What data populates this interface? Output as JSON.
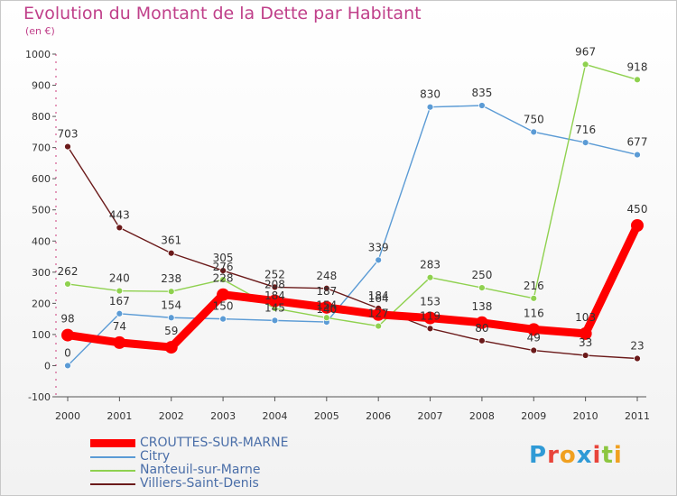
{
  "title": "Evolution du Montant de la Dette par Habitant",
  "unit": "(en €)",
  "logo": {
    "text": "Proxiti",
    "colors": [
      "#2f9ad6",
      "#e8443a",
      "#f0a020",
      "#2f9ad6",
      "#e8443a",
      "#8cc63f",
      "#f0a020"
    ]
  },
  "chart_data": {
    "type": "line",
    "title": "Evolution du Montant de la Dette par Habitant",
    "ylabel": "(en €)",
    "xlabel": "",
    "x": [
      "2000",
      "2001",
      "2002",
      "2003",
      "2004",
      "2005",
      "2006",
      "2007",
      "2008",
      "2009",
      "2010",
      "2011"
    ],
    "ylim": [
      -100,
      1000
    ],
    "yticks": [
      -100,
      0,
      100,
      200,
      300,
      400,
      500,
      600,
      700,
      800,
      900,
      1000
    ],
    "grid": false,
    "legend": "bottom-left",
    "series": [
      {
        "name": "CROUTTES-SUR-MARNE",
        "color": "#ff0000",
        "values": [
          98,
          74,
          59,
          228,
          208,
          187,
          164,
          153,
          138,
          116,
          103,
          450
        ],
        "labels": [
          "98",
          "74",
          "59",
          "228",
          "208",
          "187",
          "164",
          "153",
          "138",
          "116",
          "103",
          "450"
        ]
      },
      {
        "name": "Citry",
        "color": "#5b9bd5",
        "values": [
          0,
          167,
          154,
          150,
          145,
          140,
          339,
          830,
          835,
          750,
          716,
          677
        ],
        "labels": [
          "0",
          "167",
          "154",
          "150",
          "145",
          "140",
          "339",
          "830",
          "835",
          "750",
          "716",
          "677"
        ]
      },
      {
        "name": "Nanteuil-sur-Marne",
        "color": "#8fd14f",
        "values": [
          262,
          240,
          238,
          276,
          184,
          154,
          127,
          283,
          250,
          216,
          967,
          918
        ],
        "labels": [
          "262",
          "240",
          "238",
          "276",
          "184",
          "154",
          "127",
          "283",
          "250",
          "216",
          "967",
          "918"
        ]
      },
      {
        "name": "Villiers-Saint-Denis",
        "color": "#6b1a1a",
        "values": [
          703,
          443,
          361,
          305,
          252,
          248,
          184,
          119,
          80,
          49,
          33,
          23
        ],
        "labels": [
          "703",
          "443",
          "361",
          "305",
          "252",
          "248",
          "184",
          "119",
          "80",
          "49",
          "33",
          "23"
        ]
      }
    ]
  }
}
